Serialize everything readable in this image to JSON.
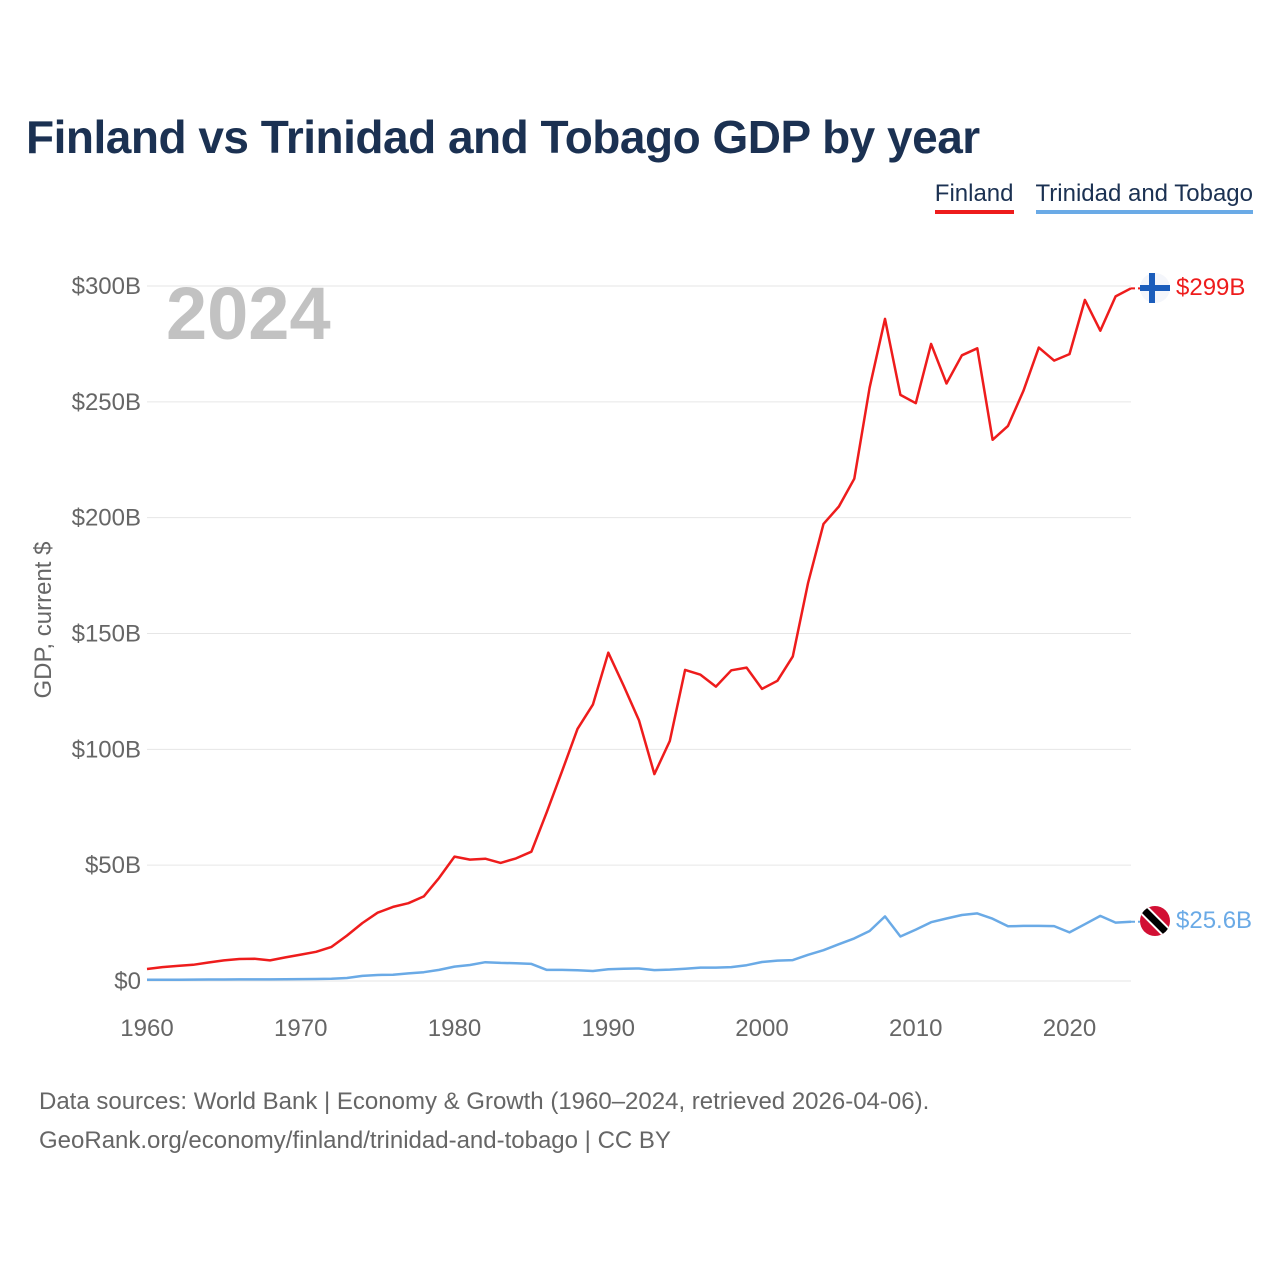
{
  "title": "Finland vs Trinidad and Tobago GDP by year",
  "legend": [
    {
      "label": "Finland",
      "color": "#ee1c1c"
    },
    {
      "label": "Trinidad and Tobago",
      "color": "#6aaae6"
    }
  ],
  "source_lines": [
    "Data sources: World Bank | Economy & Growth (1960–2024, retrieved 2026-04-06).",
    "GeoRank.org/economy/finland/trinidad-and-tobago | CC BY"
  ],
  "flags": {
    "finland": "finland-flag-icon",
    "trinidad": "trinidad-flag-icon"
  },
  "chart_data": {
    "type": "line",
    "ylabel": "GDP, current $",
    "xlabel": "",
    "year_watermark": "2024",
    "xlim": [
      1960,
      2024
    ],
    "ylim": [
      0,
      300
    ],
    "x_ticks": [
      "1960",
      "1970",
      "1980",
      "1990",
      "2000",
      "2010",
      "2020"
    ],
    "y_ticks": [
      {
        "value": 0,
        "label": "$0"
      },
      {
        "value": 50,
        "label": "$50B"
      },
      {
        "value": 100,
        "label": "$100B"
      },
      {
        "value": 150,
        "label": "$150B"
      },
      {
        "value": 200,
        "label": "$200B"
      },
      {
        "value": 250,
        "label": "$250B"
      },
      {
        "value": 300,
        "label": "$300B"
      }
    ],
    "unit": "billions of current US$",
    "x": [
      1960,
      1961,
      1962,
      1963,
      1964,
      1965,
      1966,
      1967,
      1968,
      1969,
      1970,
      1971,
      1972,
      1973,
      1974,
      1975,
      1976,
      1977,
      1978,
      1979,
      1980,
      1981,
      1982,
      1983,
      1984,
      1985,
      1986,
      1987,
      1988,
      1989,
      1990,
      1991,
      1992,
      1993,
      1994,
      1995,
      1996,
      1997,
      1998,
      1999,
      2000,
      2001,
      2002,
      2003,
      2004,
      2005,
      2006,
      2007,
      2008,
      2009,
      2010,
      2011,
      2012,
      2013,
      2014,
      2015,
      2016,
      2017,
      2018,
      2019,
      2020,
      2021,
      2022,
      2023,
      2024
    ],
    "series": [
      {
        "name": "Finland",
        "color": "#ee1c1c",
        "end_label": "$299B",
        "values": [
          5.2,
          6.0,
          6.5,
          7.0,
          8.0,
          8.9,
          9.5,
          9.6,
          8.9,
          10.2,
          11.4,
          12.6,
          14.7,
          19.6,
          25.0,
          29.5,
          32.0,
          33.6,
          36.5,
          44.5,
          53.7,
          52.4,
          52.8,
          51.0,
          52.9,
          55.8,
          72.9,
          90.6,
          108.8,
          119.3,
          141.7,
          127.5,
          112.5,
          89.3,
          103.6,
          134.3,
          132.2,
          127.1,
          134.1,
          135.3,
          126.1,
          129.6,
          140.1,
          171.9,
          197.3,
          204.8,
          216.8,
          256.1,
          285.8,
          253.0,
          249.4,
          275.0,
          257.9,
          270.1,
          273.1,
          233.6,
          239.6,
          254.7,
          273.4,
          267.8,
          270.6,
          294.0,
          280.7,
          295.5,
          299.0
        ]
      },
      {
        "name": "Trinidad and Tobago",
        "color": "#6aaae6",
        "end_label": "$25.6B",
        "values": [
          0.5,
          0.5,
          0.55,
          0.6,
          0.65,
          0.65,
          0.7,
          0.7,
          0.7,
          0.75,
          0.8,
          0.85,
          1.0,
          1.3,
          2.2,
          2.6,
          2.7,
          3.3,
          3.8,
          4.8,
          6.2,
          6.9,
          8.1,
          7.8,
          7.7,
          7.4,
          4.8,
          4.8,
          4.6,
          4.3,
          5.1,
          5.3,
          5.4,
          4.7,
          4.9,
          5.3,
          5.8,
          5.8,
          6.0,
          6.8,
          8.2,
          8.8,
          9.0,
          11.3,
          13.3,
          15.9,
          18.4,
          21.6,
          27.9,
          19.2,
          22.2,
          25.4,
          27.0,
          28.5,
          29.2,
          26.9,
          23.6,
          23.8,
          23.8,
          23.7,
          21.0,
          24.5,
          28.1,
          25.2,
          25.6
        ]
      }
    ]
  }
}
